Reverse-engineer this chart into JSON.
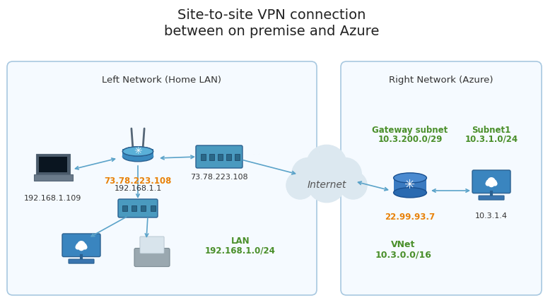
{
  "title_line1": "Site-to-site VPN connection",
  "title_line2": "between on premise and Azure",
  "bg_color": "#ffffff",
  "left_box_label": "Left Network (Home LAN)",
  "right_box_label": "Right Network (Azure)",
  "orange_color": "#e8820a",
  "green_color": "#4a8f2a",
  "arrow_color": "#5ba3c9",
  "box_edge_color": "#a8c8e0",
  "box_face_color": "#f5faff",
  "ip_left_router_orange": "73.78.223.108",
  "ip_left_router_black": "192.168.1.1",
  "ip_modem": "73.78.223.108",
  "ip_laptop": "192.168.1.109",
  "ip_gw": "22.99.93.7",
  "ip_vm": "10.3.1.4",
  "lan_label": "LAN",
  "lan_ip": "192.168.1.0/24",
  "gateway_subnet_label": "Gateway subnet",
  "gateway_subnet_ip": "10.3.200.0/29",
  "subnet1_label": "Subnet1",
  "subnet1_ip": "10.3.1.0/24",
  "vnet_label": "VNet",
  "vnet_ip": "10.3.0.0/16",
  "router_color1": "#3a8abf",
  "router_color2": "#5ab0d8",
  "switch_color": "#4a9abf",
  "hub_color": "#4a9abf",
  "gateway_color": "#3a7abf",
  "vm_color": "#4a9abf",
  "cloud_fill": "#e8eef2",
  "cloud_edge": "#b8c8d8",
  "laptop_dark": "#4a5a6a",
  "laptop_screen": "#1a2a3a",
  "printer_body": "#9aa8b0",
  "printer_paper": "#d8e0e8"
}
